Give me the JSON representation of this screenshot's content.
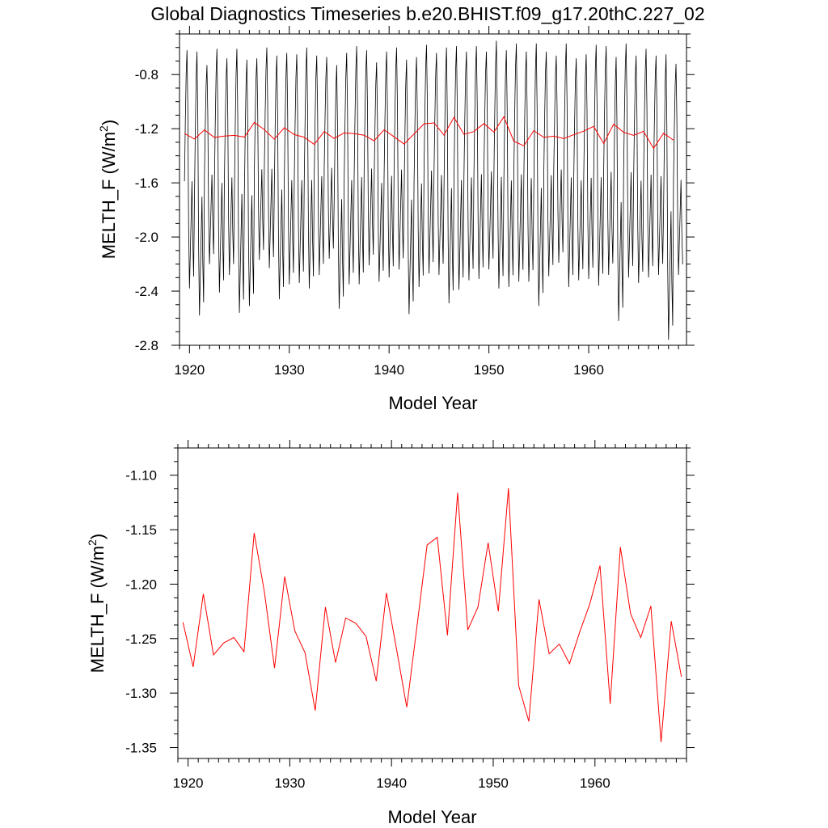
{
  "title": "Global Diagnostics Timeseries b.e20.BHIST.f09_g17.20thC.227_02",
  "chart_data": [
    {
      "type": "line",
      "xlabel": "Model Year",
      "ylabel": "MELTH_F (W/m²)",
      "ylabel_main": "MELTH_F (W/m",
      "ylabel_sup": "2",
      "ylabel_close": ")",
      "xlim": [
        1919.0,
        1969.8
      ],
      "ylim": [
        -2.8,
        -0.5
      ],
      "xticks": [
        "1920",
        "1930",
        "1940",
        "1950",
        "1960"
      ],
      "yticks": [
        "-0.8",
        "-1.2",
        "-1.6",
        "-2.0",
        "-2.4",
        "-2.8"
      ],
      "series": [
        {
          "color": "#000000",
          "monthly_start": 1919.5,
          "annual_min": [
            -2.38,
            -2.58,
            -2.2,
            -2.41,
            -2.28,
            -2.56,
            -2.51,
            -2.17,
            -2.23,
            -2.46,
            -2.35,
            -2.34,
            -2.38,
            -2.28,
            -2.16,
            -2.53,
            -2.35,
            -2.35,
            -2.21,
            -2.33,
            -2.3,
            -2.24,
            -2.57,
            -2.37,
            -2.27,
            -2.28,
            -2.49,
            -2.39,
            -2.32,
            -2.31,
            -2.24,
            -2.38,
            -2.37,
            -2.33,
            -2.33,
            -2.51,
            -2.29,
            -2.19,
            -2.37,
            -2.32,
            -2.31,
            -2.36,
            -2.28,
            -2.62,
            -2.3,
            -2.34,
            -2.3,
            -2.28,
            -2.76,
            -2.28
          ],
          "annual_max": [
            -0.62,
            -0.63,
            -0.73,
            -0.61,
            -0.68,
            -0.61,
            -0.69,
            -0.68,
            -0.6,
            -0.66,
            -0.64,
            -0.65,
            -0.6,
            -0.66,
            -0.67,
            -0.73,
            -0.64,
            -0.59,
            -0.62,
            -0.71,
            -0.63,
            -0.6,
            -0.69,
            -0.67,
            -0.58,
            -0.64,
            -0.6,
            -0.59,
            -0.63,
            -0.59,
            -0.63,
            -0.55,
            -0.62,
            -0.57,
            -0.63,
            -0.57,
            -0.63,
            -0.66,
            -0.57,
            -0.68,
            -0.65,
            -0.58,
            -0.59,
            -0.67,
            -0.57,
            -0.66,
            -0.61,
            -0.66,
            -0.65,
            -0.72
          ]
        },
        {
          "color": "#ff0000",
          "x_start": 1919.5,
          "values": [
            -1.235,
            -1.276,
            -1.209,
            -1.265,
            -1.254,
            -1.249,
            -1.262,
            -1.153,
            -1.207,
            -1.277,
            -1.193,
            -1.243,
            -1.263,
            -1.316,
            -1.221,
            -1.272,
            -1.231,
            -1.236,
            -1.248,
            -1.289,
            -1.208,
            -1.26,
            -1.313,
            -1.239,
            -1.164,
            -1.157,
            -1.247,
            -1.116,
            -1.242,
            -1.221,
            -1.162,
            -1.225,
            -1.112,
            -1.293,
            -1.326,
            -1.214,
            -1.264,
            -1.255,
            -1.273,
            -1.244,
            -1.218,
            -1.183,
            -1.31,
            -1.166,
            -1.227,
            -1.249,
            -1.22,
            -1.345,
            -1.234,
            -1.285
          ]
        }
      ]
    },
    {
      "type": "line",
      "xlabel": "Model Year",
      "ylabel": "MELTH_F (W/m²)",
      "ylabel_main": "MELTH_F (W/m",
      "ylabel_sup": "2",
      "ylabel_close": ")",
      "xlim": [
        1919.0,
        1969.0
      ],
      "ylim": [
        -1.36,
        -1.075
      ],
      "xticks": [
        "1920",
        "1930",
        "1940",
        "1950",
        "1960"
      ],
      "yticks": [
        "-1.10",
        "-1.15",
        "-1.20",
        "-1.25",
        "-1.30",
        "-1.35"
      ],
      "series": [
        {
          "color": "#ff0000",
          "x_start": 1919.5,
          "values": [
            -1.235,
            -1.276,
            -1.209,
            -1.265,
            -1.254,
            -1.249,
            -1.262,
            -1.153,
            -1.207,
            -1.277,
            -1.193,
            -1.243,
            -1.263,
            -1.316,
            -1.221,
            -1.272,
            -1.231,
            -1.236,
            -1.248,
            -1.289,
            -1.208,
            -1.26,
            -1.313,
            -1.239,
            -1.164,
            -1.157,
            -1.247,
            -1.116,
            -1.242,
            -1.221,
            -1.162,
            -1.225,
            -1.112,
            -1.293,
            -1.326,
            -1.214,
            -1.264,
            -1.255,
            -1.273,
            -1.244,
            -1.218,
            -1.183,
            -1.31,
            -1.166,
            -1.227,
            -1.249,
            -1.22,
            -1.345,
            -1.234,
            -1.285
          ]
        }
      ]
    }
  ]
}
